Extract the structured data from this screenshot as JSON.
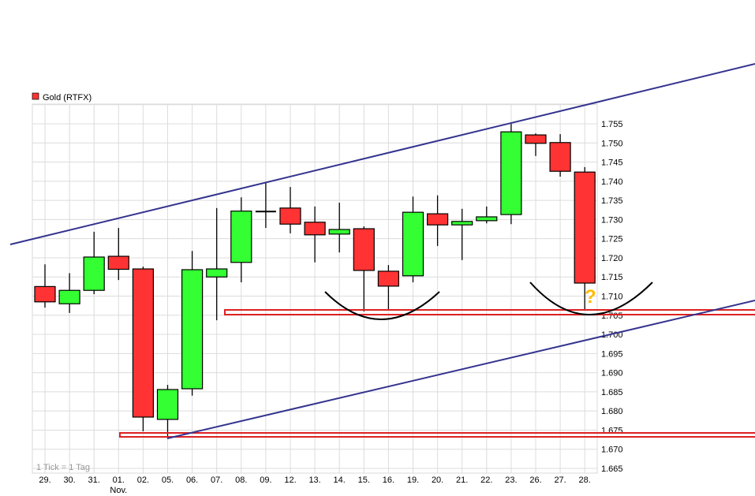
{
  "chart_data": {
    "type": "candlestick",
    "title": "",
    "legend": [
      {
        "name": "Gold (RTFX)",
        "color": "#ff3333"
      }
    ],
    "legend_placement": "top-left",
    "note": "1 Tick = 1 Tag",
    "grid": true,
    "ylim": [
      1.665,
      1.755
    ],
    "y_ticks": [
      "1.755",
      "1.750",
      "1.745",
      "1.740",
      "1.735",
      "1.730",
      "1.725",
      "1.720",
      "1.715",
      "1.710",
      "1.705",
      "1.700",
      "1.695",
      "1.690",
      "1.685",
      "1.680",
      "1.675",
      "1.670",
      "1.665"
    ],
    "y_axis_position": "right",
    "x_month_label": {
      "at": "01.",
      "text": "Nov."
    },
    "colors": {
      "up": "#33ff33",
      "down": "#ff3333",
      "trendline": "#33338f",
      "support": "#dd2222",
      "arc": "#000000",
      "question": "#ffbb00"
    },
    "categories": [
      "29.",
      "30.",
      "31.",
      "01.",
      "02.",
      "05.",
      "06.",
      "07.",
      "08.",
      "09.",
      "12.",
      "13.",
      "14.",
      "15.",
      "16.",
      "19.",
      "20.",
      "21.",
      "22.",
      "23.",
      "26.",
      "27.",
      "28."
    ],
    "open": [
      1.7125,
      1.708,
      1.7115,
      1.7204,
      1.7171,
      1.6778,
      1.6858,
      1.715,
      1.7188,
      1.7321,
      1.733,
      1.7293,
      1.7262,
      1.7276,
      1.7165,
      1.7153,
      1.7315,
      1.7286,
      1.7297,
      1.7313,
      1.7521,
      1.7501,
      1.7424
    ],
    "high": [
      1.7183,
      1.716,
      1.7268,
      1.7278,
      1.7177,
      1.6868,
      1.7218,
      1.733,
      1.7358,
      1.7396,
      1.7385,
      1.7334,
      1.7344,
      1.7282,
      1.7181,
      1.736,
      1.7363,
      1.7328,
      1.7334,
      1.755,
      1.7525,
      1.7523,
      1.7437
    ],
    "low": [
      1.707,
      1.7056,
      1.7105,
      1.7142,
      1.6747,
      1.6728,
      1.684,
      1.7037,
      1.7136,
      1.7278,
      1.7264,
      1.7188,
      1.7214,
      1.706,
      1.7064,
      1.7136,
      1.7231,
      1.7194,
      1.729,
      1.7288,
      1.7466,
      1.7412,
      1.7066
    ],
    "close": [
      1.7085,
      1.7115,
      1.7202,
      1.717,
      1.6784,
      1.6856,
      1.7169,
      1.7171,
      1.7322,
      1.7321,
      1.7288,
      1.726,
      1.7274,
      1.7167,
      1.7126,
      1.7319,
      1.7286,
      1.7295,
      1.7307,
      1.7529,
      1.7499,
      1.7426,
      1.7134
    ],
    "annotations": {
      "question_mark": "?",
      "support_levels": [
        1.7053,
        1.6737
      ]
    }
  }
}
